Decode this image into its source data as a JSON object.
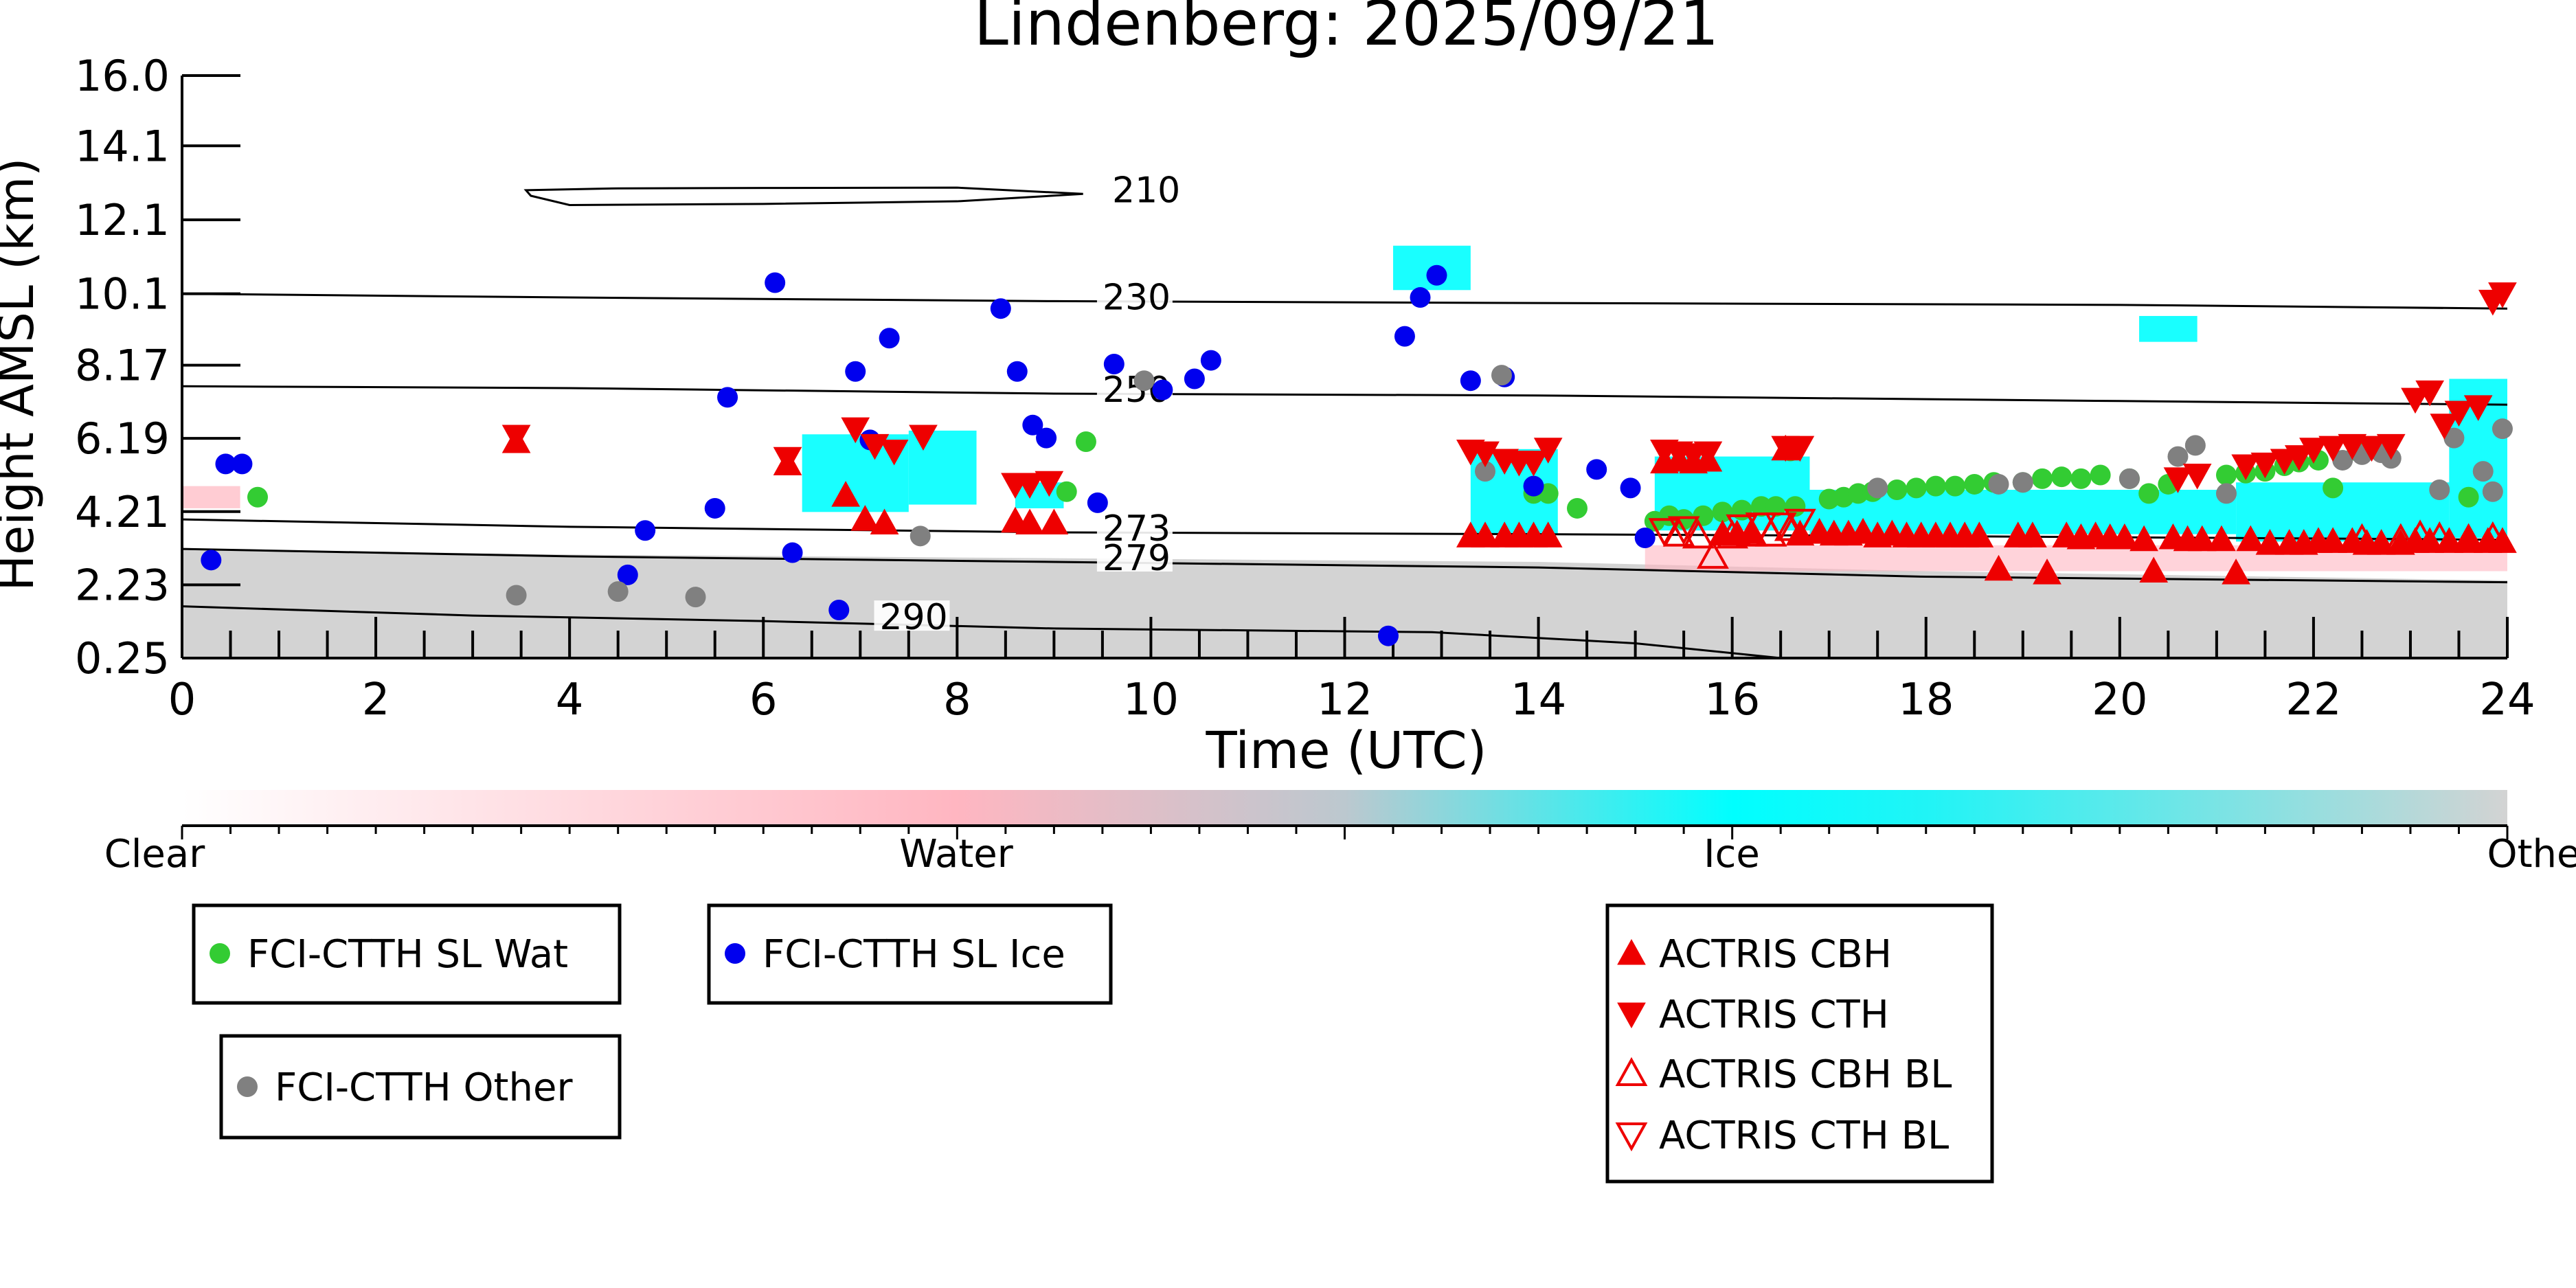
{
  "chart_data": {
    "type": "scatter",
    "title": "Lindenberg: 2025/09/21",
    "xlabel": "Time (UTC)",
    "ylabel": "Height AMSL (km)",
    "xlim": [
      0,
      24
    ],
    "ylim": [
      0.25,
      16.0
    ],
    "x_ticks": [
      "0",
      "2",
      "4",
      "6",
      "8",
      "10",
      "12",
      "14",
      "16",
      "18",
      "20",
      "22",
      "24"
    ],
    "y_ticks": [
      "0.25",
      "2.23",
      "4.21",
      "6.19",
      "8.17",
      "10.1",
      "12.1",
      "14.1",
      "16.0"
    ],
    "y_tick_values": [
      0.25,
      2.23,
      4.21,
      6.19,
      8.17,
      10.1,
      12.1,
      14.1,
      16.0
    ],
    "colorbar": {
      "labels": [
        "Clear",
        "Water",
        "Ice",
        "Other"
      ],
      "colors": [
        "#ffffff",
        "#ffb6c1",
        "#00ffff",
        "#d3d3d3"
      ]
    },
    "contours": [
      {
        "label": "210",
        "points": [
          [
            3.55,
            12.9
          ],
          [
            4.5,
            12.95
          ],
          [
            6,
            12.96
          ],
          [
            8,
            12.97
          ],
          [
            9.3,
            12.8
          ],
          [
            8,
            12.6
          ],
          [
            6,
            12.53
          ],
          [
            4,
            12.5
          ],
          [
            3.6,
            12.75
          ]
        ],
        "label_at": [
          9.6,
          12.8
        ]
      },
      {
        "label": "230",
        "points": [
          [
            0,
            10.1
          ],
          [
            4,
            10.0
          ],
          [
            9,
            9.9
          ],
          [
            14,
            9.85
          ],
          [
            20,
            9.8
          ],
          [
            24,
            9.7
          ]
        ],
        "label_at": [
          9.5,
          9.9
        ]
      },
      {
        "label": "250",
        "points": [
          [
            0,
            7.6
          ],
          [
            4,
            7.55
          ],
          [
            9,
            7.4
          ],
          [
            14,
            7.35
          ],
          [
            20,
            7.2
          ],
          [
            24,
            7.1
          ]
        ],
        "label_at": [
          9.5,
          7.4
        ]
      },
      {
        "label": "273",
        "points": [
          [
            0,
            4.0
          ],
          [
            4,
            3.8
          ],
          [
            9,
            3.65
          ],
          [
            14,
            3.6
          ],
          [
            18,
            3.55
          ],
          [
            24,
            3.45
          ]
        ],
        "label_at": [
          9.5,
          3.65
        ]
      },
      {
        "label": "279",
        "points": [
          [
            0,
            3.2
          ],
          [
            4,
            3.0
          ],
          [
            9,
            2.85
          ],
          [
            14,
            2.7
          ],
          [
            18,
            2.45
          ],
          [
            24,
            2.3
          ]
        ],
        "label_at": [
          9.5,
          2.85
        ]
      },
      {
        "label": "290",
        "points": [
          [
            0,
            1.65
          ],
          [
            3,
            1.4
          ],
          [
            6,
            1.25
          ],
          [
            9,
            1.05
          ],
          [
            12.9,
            0.95
          ],
          [
            15,
            0.65
          ],
          [
            16.5,
            0.25
          ]
        ],
        "label_at": [
          7.2,
          1.25
        ]
      }
    ],
    "series": [
      {
        "name": "FCI-CTTH SL Wat",
        "color": "#33cc33",
        "marker": "circle",
        "x": [
          0.78,
          9.13,
          9.33,
          13.95,
          14.1,
          14.4,
          15.2,
          15.35,
          15.5,
          15.7,
          15.9,
          16.1,
          16.3,
          16.45,
          16.6,
          16.65,
          17.0,
          17.15,
          17.3,
          17.45,
          17.7,
          17.9,
          18.1,
          18.3,
          18.5,
          18.7,
          19.0,
          19.2,
          19.4,
          19.6,
          19.8,
          20.1,
          20.3,
          20.5,
          21.1,
          21.3,
          21.5,
          21.7,
          21.85,
          22.05,
          22.2,
          22.45,
          23.6
        ],
        "y": [
          4.6,
          4.75,
          6.1,
          4.7,
          4.7,
          4.3,
          3.95,
          4.1,
          4.0,
          4.1,
          4.2,
          4.25,
          4.35,
          4.35,
          5.85,
          4.35,
          4.55,
          4.6,
          4.7,
          4.75,
          4.8,
          4.85,
          4.9,
          4.9,
          4.95,
          5.0,
          5.0,
          5.1,
          5.15,
          5.1,
          5.2,
          5.1,
          4.7,
          4.95,
          5.2,
          5.25,
          5.3,
          5.45,
          5.55,
          5.6,
          4.85,
          5.85,
          4.6
        ]
      },
      {
        "name": "FCI-CTTH SL Ice",
        "color": "#0000ee",
        "marker": "circle",
        "x": [
          0.3,
          0.45,
          0.62,
          4.6,
          4.78,
          5.5,
          5.63,
          6.12,
          6.3,
          6.78,
          6.95,
          7.1,
          7.3,
          8.45,
          8.62,
          8.78,
          8.92,
          9.45,
          9.62,
          10.12,
          10.45,
          10.62,
          12.45,
          12.62,
          12.78,
          12.95,
          13.3,
          13.65,
          13.95,
          14.6,
          14.95,
          15.1
        ],
        "y": [
          2.9,
          5.5,
          5.5,
          2.5,
          3.7,
          4.3,
          7.3,
          10.4,
          3.1,
          1.55,
          8.0,
          6.15,
          8.9,
          9.7,
          8.0,
          6.55,
          6.2,
          4.45,
          8.2,
          7.5,
          7.8,
          8.3,
          0.85,
          8.95,
          10.0,
          10.6,
          7.75,
          7.85,
          4.9,
          5.35,
          4.85,
          3.5
        ]
      },
      {
        "name": "FCI-CTTH Other",
        "color": "#808080",
        "marker": "circle",
        "x": [
          3.45,
          4.5,
          5.3,
          7.62,
          9.93,
          13.45,
          13.62,
          17.5,
          18.75,
          19.0,
          20.1,
          20.6,
          20.78,
          21.1,
          22.3,
          22.5,
          22.7,
          22.8,
          23.3,
          23.45,
          23.75,
          23.85,
          23.95
        ],
        "y": [
          1.95,
          2.05,
          1.9,
          3.55,
          7.75,
          5.3,
          7.9,
          4.85,
          4.95,
          5.0,
          5.1,
          5.7,
          6.0,
          4.7,
          5.6,
          5.75,
          5.8,
          5.65,
          4.8,
          6.2,
          5.3,
          4.75,
          6.45
        ]
      },
      {
        "name": "ACTRIS CBH",
        "color": "#ee0000",
        "marker": "triangle-up",
        "x": [
          3.45,
          6.25,
          6.85,
          7.05,
          7.25,
          8.6,
          8.75,
          9.0,
          13.3,
          13.45,
          13.65,
          13.8,
          13.95,
          14.1,
          15.3,
          15.45,
          15.6,
          15.75,
          15.9,
          16.05,
          16.2,
          16.55,
          16.7,
          16.9,
          17.05,
          17.2,
          17.35,
          17.5,
          17.65,
          17.8,
          17.95,
          18.1,
          18.25,
          18.4,
          18.55,
          18.75,
          18.95,
          19.1,
          19.25,
          19.45,
          19.6,
          19.75,
          19.9,
          20.05,
          20.25,
          20.35,
          20.55,
          20.7,
          20.85,
          21.05,
          21.2,
          21.35,
          21.55,
          21.75,
          21.9,
          22.05,
          22.2,
          22.4,
          22.55,
          22.7,
          22.9,
          23.05,
          23.2,
          23.4,
          23.6,
          23.8,
          23.95
        ],
        "y": [
          6.1,
          5.5,
          4.65,
          4.0,
          3.9,
          3.95,
          3.9,
          3.9,
          3.55,
          3.55,
          3.55,
          3.55,
          3.55,
          3.55,
          5.55,
          5.6,
          5.55,
          5.6,
          3.6,
          3.6,
          3.65,
          5.9,
          3.6,
          3.65,
          3.6,
          3.6,
          3.65,
          3.55,
          3.6,
          3.55,
          3.55,
          3.55,
          3.55,
          3.55,
          3.55,
          2.65,
          3.55,
          3.55,
          2.55,
          3.55,
          3.5,
          3.55,
          3.5,
          3.5,
          3.45,
          2.6,
          3.5,
          3.45,
          3.45,
          3.45,
          2.55,
          3.45,
          3.35,
          3.35,
          3.35,
          3.4,
          3.4,
          3.4,
          3.35,
          3.35,
          3.35,
          3.4,
          3.4,
          3.4,
          3.4,
          3.4,
          3.4
        ]
      },
      {
        "name": "ACTRIS CTH",
        "color": "#ee0000",
        "marker": "triangle-down",
        "x": [
          3.45,
          6.25,
          6.95,
          7.15,
          7.35,
          7.65,
          8.6,
          8.75,
          8.95,
          13.3,
          13.45,
          13.65,
          13.8,
          13.95,
          14.1,
          15.3,
          15.45,
          15.6,
          15.75,
          16.55,
          16.7,
          20.6,
          20.8,
          21.3,
          21.5,
          21.7,
          21.85,
          22.0,
          22.2,
          22.4,
          22.6,
          22.8,
          23.05,
          23.2,
          23.35,
          23.5,
          23.7,
          23.85,
          23.95
        ],
        "y": [
          6.25,
          5.65,
          6.45,
          6.0,
          5.85,
          6.25,
          4.95,
          4.95,
          5.0,
          5.85,
          5.8,
          5.6,
          5.55,
          5.55,
          5.9,
          5.85,
          5.8,
          5.75,
          5.8,
          5.95,
          5.95,
          5.1,
          5.2,
          5.45,
          5.5,
          5.6,
          5.7,
          5.9,
          5.95,
          6.0,
          5.95,
          6.0,
          7.25,
          7.45,
          6.55,
          6.9,
          7.05,
          9.9,
          10.1
        ]
      },
      {
        "name": "ACTRIS CBH BL",
        "color": "#ee0000",
        "marker": "triangle-up-open",
        "x": [
          15.45,
          15.65,
          15.8,
          16.0,
          16.2,
          16.4,
          16.6,
          22.5,
          22.9,
          23.1,
          23.3,
          23.6,
          23.85
        ],
        "y": [
          3.6,
          3.55,
          3.0,
          3.55,
          3.6,
          3.6,
          3.75,
          3.45,
          3.45,
          3.55,
          3.5,
          3.45,
          3.5
        ]
      },
      {
        "name": "ACTRIS CTH BL",
        "color": "#ee0000",
        "marker": "triangle-down-open",
        "x": [
          15.3,
          15.5,
          16.1,
          16.3,
          16.5,
          16.7
        ],
        "y": [
          3.7,
          3.75,
          3.8,
          3.85,
          3.85,
          3.95
        ]
      }
    ]
  }
}
